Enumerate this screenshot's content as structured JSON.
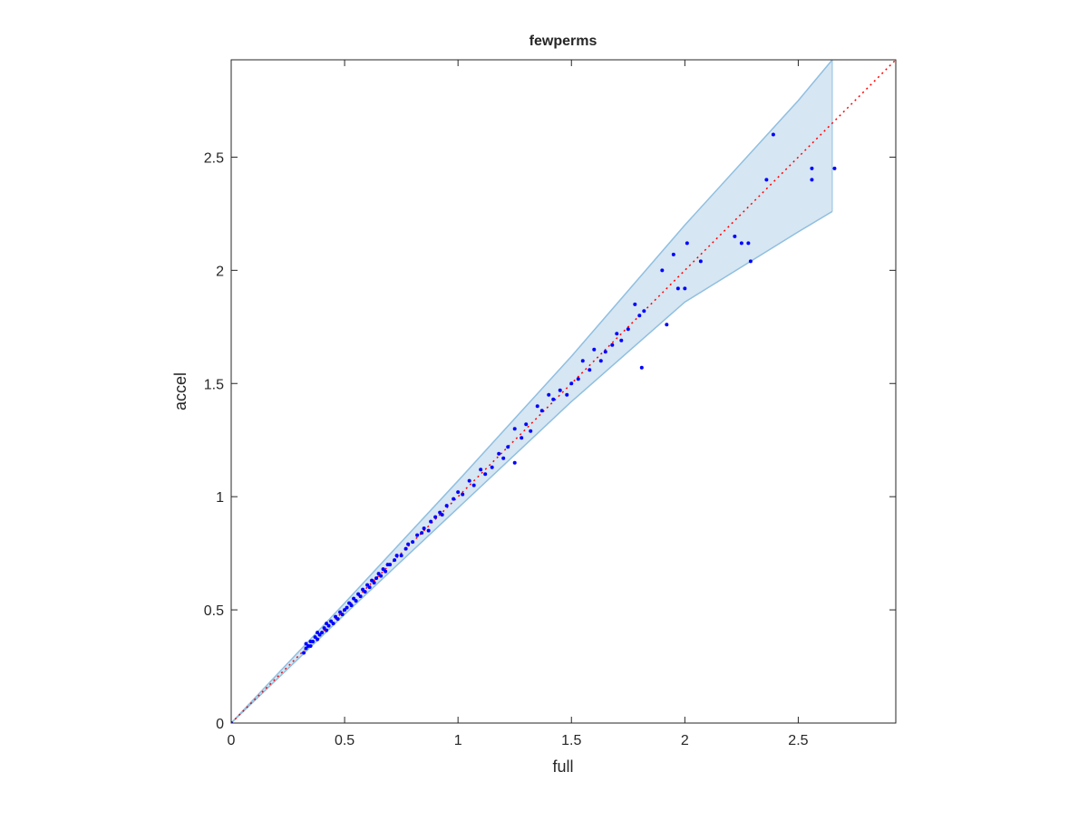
{
  "chart_data": {
    "type": "scatter",
    "title": "fewperms",
    "x_label": "full",
    "y_label": "accel",
    "xlim": [
      0,
      2.93
    ],
    "ylim": [
      0,
      2.93
    ],
    "xticks": [
      0,
      0.5,
      1,
      1.5,
      2,
      2.5
    ],
    "yticks": [
      0,
      0.5,
      1,
      1.5,
      2,
      2.5
    ],
    "color": "#0000ff",
    "x": [
      0,
      0.32,
      0.33,
      0.33,
      0.34,
      0.35,
      0.35,
      0.36,
      0.37,
      0.38,
      0.38,
      0.39,
      0.4,
      0.41,
      0.42,
      0.42,
      0.43,
      0.44,
      0.45,
      0.46,
      0.47,
      0.48,
      0.49,
      0.5,
      0.51,
      0.52,
      0.53,
      0.54,
      0.55,
      0.56,
      0.57,
      0.58,
      0.59,
      0.6,
      0.61,
      0.62,
      0.63,
      0.64,
      0.65,
      0.66,
      0.67,
      0.68,
      0.69,
      0.7,
      0.72,
      0.73,
      0.75,
      0.77,
      0.78,
      0.8,
      0.82,
      0.84,
      0.85,
      0.87,
      0.88,
      0.9,
      0.92,
      0.93,
      0.95,
      0.98,
      1.0,
      1.02,
      1.05,
      1.07,
      1.1,
      1.12,
      1.15,
      1.18,
      1.2,
      1.22,
      1.25,
      1.25,
      1.28,
      1.3,
      1.32,
      1.35,
      1.37,
      1.4,
      1.42,
      1.45,
      1.48,
      1.5,
      1.53,
      1.55,
      1.58,
      1.6,
      1.63,
      1.65,
      1.68,
      1.7,
      1.72,
      1.75,
      1.78,
      1.8,
      1.81,
      1.82,
      1.9,
      1.92,
      1.95,
      1.97,
      2.0,
      2.01,
      2.07,
      2.22,
      2.25,
      2.28,
      2.29,
      2.36,
      2.39,
      2.56,
      2.56,
      2.66
    ],
    "y": [
      0,
      0.31,
      0.33,
      0.35,
      0.34,
      0.36,
      0.34,
      0.36,
      0.38,
      0.37,
      0.4,
      0.39,
      0.4,
      0.42,
      0.41,
      0.44,
      0.43,
      0.45,
      0.44,
      0.47,
      0.46,
      0.49,
      0.48,
      0.5,
      0.51,
      0.53,
      0.52,
      0.55,
      0.54,
      0.57,
      0.56,
      0.59,
      0.58,
      0.61,
      0.6,
      0.63,
      0.62,
      0.64,
      0.66,
      0.65,
      0.68,
      0.67,
      0.7,
      0.7,
      0.72,
      0.74,
      0.74,
      0.77,
      0.79,
      0.8,
      0.83,
      0.84,
      0.86,
      0.85,
      0.89,
      0.91,
      0.93,
      0.92,
      0.96,
      0.99,
      1.02,
      1.01,
      1.07,
      1.05,
      1.12,
      1.1,
      1.13,
      1.19,
      1.17,
      1.22,
      1.3,
      1.15,
      1.26,
      1.32,
      1.29,
      1.4,
      1.38,
      1.45,
      1.43,
      1.47,
      1.45,
      1.5,
      1.52,
      1.6,
      1.56,
      1.65,
      1.6,
      1.64,
      1.67,
      1.72,
      1.69,
      1.74,
      1.85,
      1.8,
      1.57,
      1.82,
      2.0,
      1.76,
      2.07,
      1.92,
      1.92,
      2.12,
      2.04,
      2.15,
      2.12,
      2.12,
      2.04,
      2.4,
      2.6,
      2.45,
      2.4,
      2.45
    ],
    "band": {
      "color": "#d6e6f2",
      "edge_color": "#8fbfe0",
      "x": [
        0,
        0.5,
        1,
        1.5,
        2,
        2.5,
        2.65
      ],
      "upper": [
        0,
        0.53,
        1.07,
        1.62,
        2.2,
        2.75,
        2.93
      ],
      "lower": [
        0,
        0.48,
        0.95,
        1.42,
        1.86,
        2.17,
        2.26
      ]
    },
    "diagonal": {
      "color": "#ff0000",
      "x": [
        0,
        2.93
      ],
      "y": [
        0,
        2.93
      ]
    }
  }
}
